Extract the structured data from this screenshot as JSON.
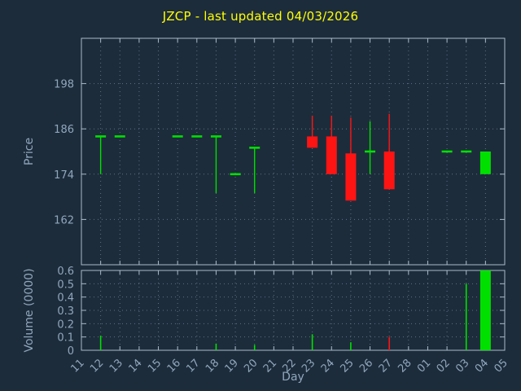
{
  "title": "JZCP - last updated 04/03/2026",
  "colors": {
    "background": "#1d2c3b",
    "grid": "#5d7183",
    "frame": "#a9bac8",
    "tick_text": "#8fa7bd",
    "title_text": "#ffff00",
    "up": "#00e000",
    "down": "#ff1414"
  },
  "chart_data": [
    {
      "type": "candlestick",
      "title": "JZCP - last updated 04/03/2026",
      "xlabel": "Day",
      "ylabel": "Price",
      "ylim": [
        150,
        210
      ],
      "yticks": [
        "162",
        "174",
        "186",
        "198"
      ],
      "ytick_values": [
        162,
        174,
        186,
        198
      ],
      "grid": true,
      "legend": "none",
      "categories": [
        "11",
        "12",
        "13",
        "14",
        "15",
        "16",
        "17",
        "18",
        "19",
        "20",
        "21",
        "22",
        "23",
        "24",
        "25",
        "26",
        "27",
        "28",
        "01",
        "02",
        "03",
        "04",
        "05"
      ],
      "series": [
        {
          "day": "12",
          "open": 184,
          "high": 184,
          "low": 174,
          "close": 184,
          "dir": "up"
        },
        {
          "day": "13",
          "open": 184,
          "high": 184,
          "low": 184,
          "close": 184,
          "dir": "up"
        },
        {
          "day": "16",
          "open": 184,
          "high": 184,
          "low": 184,
          "close": 184,
          "dir": "up"
        },
        {
          "day": "17",
          "open": 184,
          "high": 184,
          "low": 184,
          "close": 184,
          "dir": "up"
        },
        {
          "day": "18",
          "open": 184,
          "high": 184,
          "low": 169,
          "close": 184,
          "dir": "up"
        },
        {
          "day": "19",
          "open": 174,
          "high": 174,
          "low": 174,
          "close": 174,
          "dir": "up"
        },
        {
          "day": "20",
          "open": 181,
          "high": 181,
          "low": 169,
          "close": 181,
          "dir": "up"
        },
        {
          "day": "23",
          "open": 184,
          "high": 189.5,
          "low": 181,
          "close": 181,
          "dir": "down"
        },
        {
          "day": "24",
          "open": 184,
          "high": 189.5,
          "low": 174,
          "close": 174,
          "dir": "down"
        },
        {
          "day": "25",
          "open": 179.5,
          "high": 189,
          "low": 167,
          "close": 167,
          "dir": "down"
        },
        {
          "day": "26",
          "open": 180,
          "high": 188,
          "low": 174,
          "close": 180,
          "dir": "up"
        },
        {
          "day": "27",
          "open": 180,
          "high": 190,
          "low": 170,
          "close": 170,
          "dir": "down"
        },
        {
          "day": "02",
          "open": 180,
          "high": 180,
          "low": 180,
          "close": 180,
          "dir": "up"
        },
        {
          "day": "03",
          "open": 180,
          "high": 180,
          "low": 180,
          "close": 180,
          "dir": "up"
        },
        {
          "day": "04",
          "open": 174,
          "high": 180,
          "low": 174,
          "close": 180,
          "dir": "up"
        }
      ]
    },
    {
      "type": "bar",
      "ylabel": "Volume (0000)",
      "ylim": [
        0,
        0.6
      ],
      "yticks": [
        "0",
        "0.1",
        "0.2",
        "0.3",
        "0.4",
        "0.5",
        "0.6"
      ],
      "ytick_values": [
        0,
        0.1,
        0.2,
        0.3,
        0.4,
        0.5,
        0.6
      ],
      "grid": true,
      "bars": [
        {
          "day": "12",
          "value": 0.11,
          "dir": "up"
        },
        {
          "day": "18",
          "value": 0.05,
          "dir": "up"
        },
        {
          "day": "20",
          "value": 0.04,
          "dir": "up"
        },
        {
          "day": "23",
          "value": 0.12,
          "dir": "up"
        },
        {
          "day": "25",
          "value": 0.06,
          "dir": "up"
        },
        {
          "day": "27",
          "value": 0.1,
          "dir": "down"
        },
        {
          "day": "03",
          "value": 0.5,
          "dir": "up"
        },
        {
          "day": "04",
          "value": 0.6,
          "dir": "up",
          "wide": true
        }
      ]
    }
  ]
}
